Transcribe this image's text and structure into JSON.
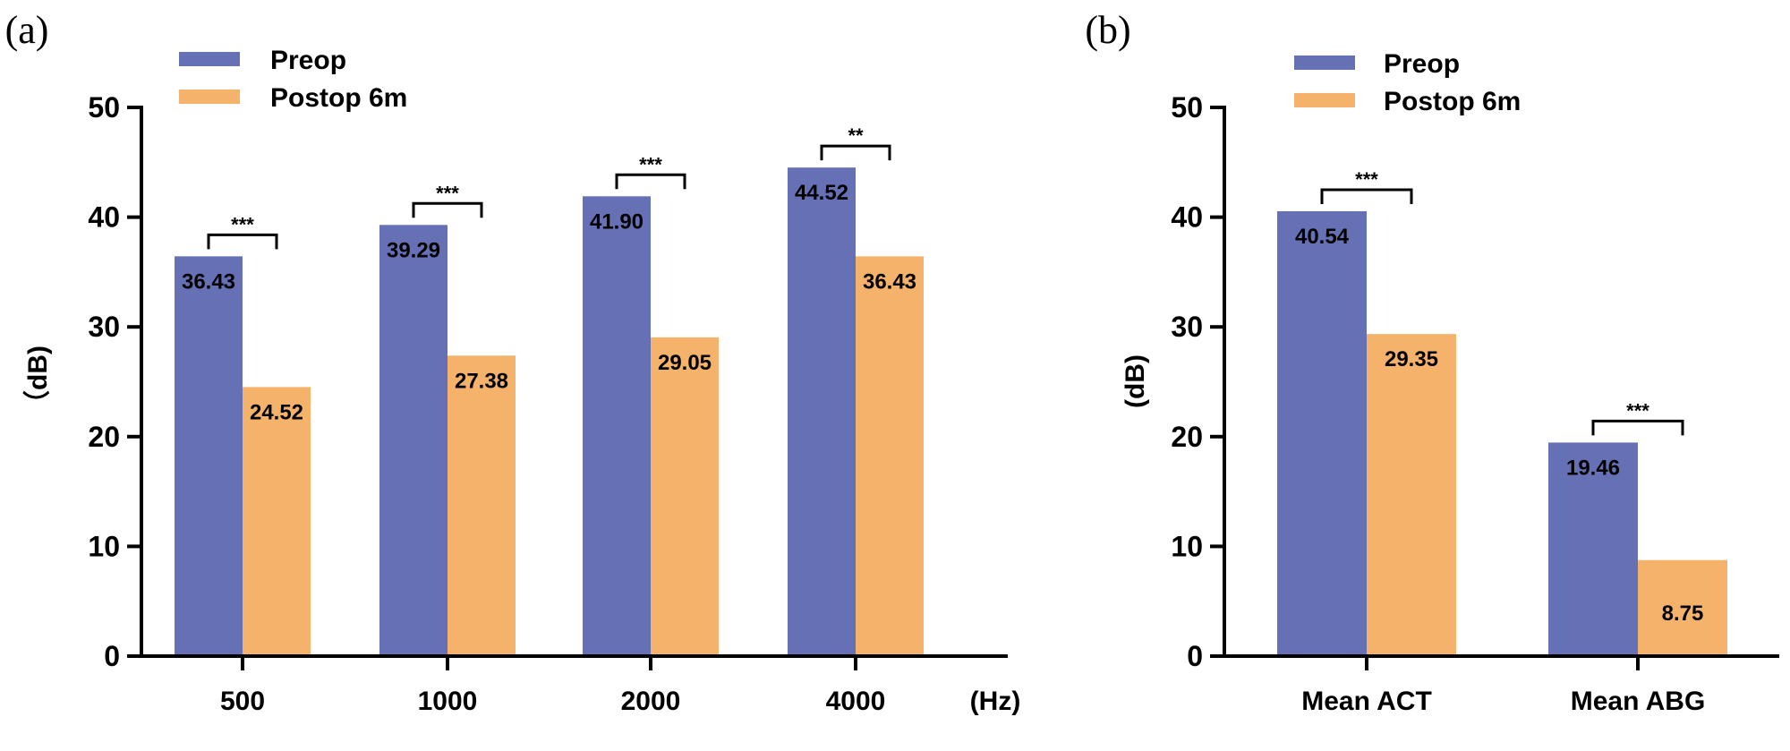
{
  "colors": {
    "preop": "#6670b5",
    "postop": "#f5b26b",
    "axis": "#000000"
  },
  "chart_data": [
    {
      "type": "bar",
      "panel_label": "(a)",
      "categories": [
        "500",
        "1000",
        "2000",
        "4000"
      ],
      "series": [
        {
          "name": "Preop",
          "values": [
            36.43,
            39.29,
            41.9,
            44.52
          ],
          "labels": [
            "36.43",
            "39.29",
            "41.90",
            "44.52"
          ]
        },
        {
          "name": "Postop 6m",
          "values": [
            24.52,
            27.38,
            29.05,
            36.43
          ],
          "labels": [
            "24.52",
            "27.38",
            "29.05",
            "36.43"
          ]
        }
      ],
      "significance": [
        "***",
        "***",
        "***",
        "**"
      ],
      "ylabel": "（dB)",
      "xunit": "(Hz)",
      "ylim": [
        0,
        50
      ],
      "yticks": [
        "0",
        "10",
        "20",
        "30",
        "40",
        "50"
      ],
      "legend": [
        "Preop",
        "Postop 6m"
      ],
      "legend_position": "top-left"
    },
    {
      "type": "bar",
      "panel_label": "(b)",
      "categories": [
        "Mean ACT",
        "Mean ABG"
      ],
      "series": [
        {
          "name": "Preop",
          "values": [
            40.54,
            19.46
          ],
          "labels": [
            "40.54",
            "19.46"
          ]
        },
        {
          "name": "Postop 6m",
          "values": [
            29.35,
            8.75
          ],
          "labels": [
            "29.35",
            "8.75"
          ]
        }
      ],
      "significance": [
        "***",
        "***"
      ],
      "ylabel": "(dB)",
      "xunit": "",
      "ylim": [
        0,
        50
      ],
      "yticks": [
        "0",
        "10",
        "20",
        "30",
        "40",
        "50"
      ],
      "legend": [
        "Preop",
        "Postop 6m"
      ],
      "legend_position": "top-left"
    }
  ]
}
